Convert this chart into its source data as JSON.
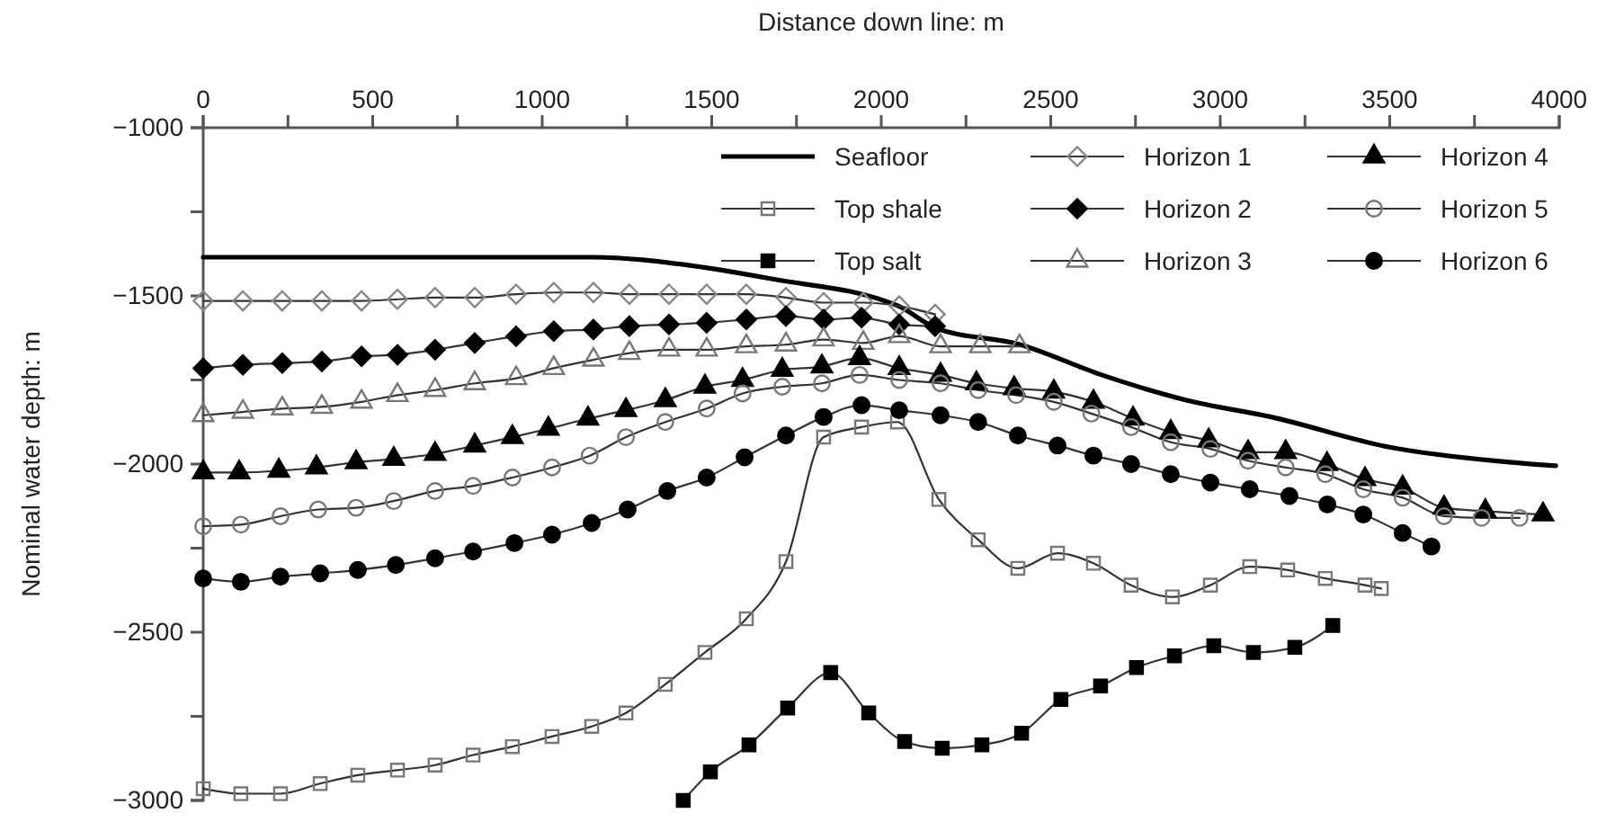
{
  "chart_data": {
    "type": "line",
    "xlabel": "Distance down line: m",
    "ylabel": "Nominal water depth: m",
    "xlim": [
      0,
      4000
    ],
    "ylim": [
      -3000,
      -1000
    ],
    "xticks": [
      0,
      {
        "value": 250,
        "label": null
      },
      500,
      {
        "value": 750,
        "label": null
      },
      1000,
      {
        "value": 1250,
        "label": null
      },
      1500,
      {
        "value": 1750,
        "label": null
      },
      2000,
      {
        "value": 2250,
        "label": null
      },
      2500,
      {
        "value": 2750,
        "label": null
      },
      3000,
      {
        "value": 3250,
        "label": null
      },
      3500,
      {
        "value": 3750,
        "label": null
      },
      4000
    ],
    "yticks": [
      {
        "value": -1000,
        "label": "−1000"
      },
      {
        "value": -1250,
        "label": null
      },
      {
        "value": -1500,
        "label": "−1500"
      },
      {
        "value": -1750,
        "label": null
      },
      {
        "value": -2000,
        "label": "−2000"
      },
      {
        "value": -2250,
        "label": null
      },
      {
        "value": -2500,
        "label": "−2500"
      },
      {
        "value": -2750,
        "label": null
      },
      {
        "value": -3000,
        "label": "−3000"
      }
    ],
    "grid": false,
    "legend": "top right",
    "line_style": "solid",
    "series": [
      {
        "name": "Seafloor",
        "color": "#000000",
        "marker": "none",
        "x": [
          0,
          1150,
          1440,
          1680,
          2050,
          2160,
          2410,
          2650,
          2900,
          3150,
          3500,
          3860,
          3990
        ],
        "values": [
          -1385,
          -1385,
          -1410,
          -1450,
          -1530,
          -1595,
          -1645,
          -1735,
          -1810,
          -1860,
          -1950,
          -1995,
          -2005
        ]
      },
      {
        "name": "Top shale",
        "color": "#777777",
        "marker": "square",
        "x": [
          0,
          111,
          228,
          345,
          456,
          573,
          684,
          796,
          912,
          1029,
          1146,
          1247,
          1363,
          1480,
          1602,
          1719,
          1830,
          1942,
          2048,
          2170,
          2286,
          2403,
          2520,
          2626,
          2737,
          2859,
          2971,
          3087,
          3199,
          3310,
          3427,
          3475
        ],
        "values": [
          -2965,
          -2980,
          -2980,
          -2950,
          -2925,
          -2910,
          -2895,
          -2865,
          -2840,
          -2810,
          -2780,
          -2740,
          -2655,
          -2560,
          -2460,
          -2290,
          -1920,
          -1890,
          -1875,
          -2105,
          -2225,
          -2310,
          -2265,
          -2295,
          -2360,
          -2395,
          -2360,
          -2305,
          -2315,
          -2340,
          -2360,
          -2370
        ]
      },
      {
        "name": "Top salt",
        "color": "#000000",
        "marker": "square",
        "x": [
          1416,
          1496,
          1610,
          1724,
          1851,
          1963,
          2069,
          2180,
          2297,
          2414,
          2530,
          2647,
          2753,
          2865,
          2981,
          3098,
          3220,
          3332
        ],
        "values": [
          -3000,
          -2915,
          -2835,
          -2725,
          -2620,
          -2740,
          -2825,
          -2845,
          -2835,
          -2800,
          -2700,
          -2660,
          -2605,
          -2570,
          -2540,
          -2560,
          -2545,
          -2480
        ]
      },
      {
        "name": "Horizon 1",
        "color": "#888888",
        "marker": "diamond",
        "x": [
          0,
          117,
          233,
          350,
          467,
          573,
          684,
          801,
          923,
          1034,
          1151,
          1257,
          1374,
          1485,
          1602,
          1719,
          1830,
          1947,
          2053,
          2159
        ],
        "values": [
          -1515,
          -1515,
          -1515,
          -1515,
          -1515,
          -1510,
          -1505,
          -1505,
          -1495,
          -1490,
          -1490,
          -1495,
          -1495,
          -1495,
          -1495,
          -1505,
          -1520,
          -1520,
          -1530,
          -1555
        ]
      },
      {
        "name": "Horizon 2",
        "color": "#000000",
        "marker": "diamond",
        "x": [
          0,
          117,
          233,
          350,
          467,
          573,
          684,
          801,
          923,
          1034,
          1151,
          1257,
          1374,
          1485,
          1602,
          1719,
          1830,
          1942,
          2053,
          2159
        ],
        "values": [
          -1715,
          -1705,
          -1700,
          -1695,
          -1680,
          -1675,
          -1660,
          -1640,
          -1620,
          -1605,
          -1600,
          -1590,
          -1585,
          -1580,
          -1570,
          -1560,
          -1570,
          -1565,
          -1585,
          -1590
        ]
      },
      {
        "name": "Horizon 3",
        "color": "#777777",
        "marker": "triangle",
        "x": [
          0,
          117,
          233,
          350,
          467,
          573,
          684,
          801,
          923,
          1034,
          1151,
          1257,
          1374,
          1485,
          1602,
          1719,
          1830,
          1947,
          2053,
          2175,
          2292,
          2408
        ],
        "values": [
          -1855,
          -1845,
          -1835,
          -1830,
          -1815,
          -1795,
          -1780,
          -1760,
          -1745,
          -1715,
          -1690,
          -1670,
          -1660,
          -1660,
          -1650,
          -1645,
          -1630,
          -1640,
          -1620,
          -1650,
          -1650,
          -1650
        ]
      },
      {
        "name": "Horizon 4",
        "color": "#000000",
        "marker": "triangle",
        "x": [
          0,
          106,
          223,
          334,
          451,
          562,
          684,
          801,
          912,
          1018,
          1135,
          1247,
          1363,
          1480,
          1591,
          1708,
          1825,
          1936,
          2053,
          2175,
          2281,
          2392,
          2509,
          2626,
          2743,
          2854,
          2966,
          3082,
          3193,
          3315,
          3427,
          3538,
          3660,
          3782,
          3952
        ],
        "values": [
          -2025,
          -2025,
          -2020,
          -2010,
          -1995,
          -1985,
          -1970,
          -1945,
          -1920,
          -1895,
          -1865,
          -1840,
          -1810,
          -1770,
          -1750,
          -1720,
          -1710,
          -1685,
          -1715,
          -1735,
          -1760,
          -1775,
          -1785,
          -1815,
          -1865,
          -1905,
          -1930,
          -1965,
          -1965,
          -2000,
          -2045,
          -2070,
          -2130,
          -2140,
          -2150
        ]
      },
      {
        "name": "Horizon 5",
        "color": "#777777",
        "marker": "circle",
        "x": [
          0,
          111,
          228,
          339,
          451,
          562,
          684,
          796,
          912,
          1029,
          1140,
          1247,
          1363,
          1485,
          1591,
          1708,
          1825,
          1936,
          2053,
          2175,
          2286,
          2398,
          2509,
          2620,
          2737,
          2854,
          2971,
          3082,
          3193,
          3310,
          3422,
          3538,
          3660,
          3771,
          3883
        ],
        "values": [
          -2185,
          -2180,
          -2155,
          -2135,
          -2130,
          -2110,
          -2080,
          -2065,
          -2040,
          -2010,
          -1975,
          -1920,
          -1875,
          -1835,
          -1790,
          -1770,
          -1760,
          -1735,
          -1750,
          -1760,
          -1780,
          -1795,
          -1815,
          -1850,
          -1890,
          -1935,
          -1955,
          -1990,
          -2010,
          -2030,
          -2075,
          -2100,
          -2155,
          -2160,
          -2160
        ]
      },
      {
        "name": "Horizon 6",
        "color": "#000000",
        "marker": "circle",
        "x": [
          0,
          111,
          228,
          345,
          456,
          568,
          684,
          796,
          918,
          1029,
          1146,
          1252,
          1369,
          1485,
          1597,
          1719,
          1830,
          1942,
          2053,
          2175,
          2286,
          2403,
          2520,
          2626,
          2737,
          2854,
          2971,
          3087,
          3204,
          3316,
          3422,
          3538,
          3623
        ],
        "values": [
          -2340,
          -2350,
          -2335,
          -2325,
          -2315,
          -2300,
          -2280,
          -2260,
          -2235,
          -2210,
          -2175,
          -2135,
          -2080,
          -2040,
          -1980,
          -1915,
          -1860,
          -1825,
          -1840,
          -1855,
          -1875,
          -1915,
          -1945,
          -1975,
          -2000,
          -2030,
          -2055,
          -2075,
          -2095,
          -2120,
          -2150,
          -2205,
          -2245
        ]
      }
    ]
  }
}
